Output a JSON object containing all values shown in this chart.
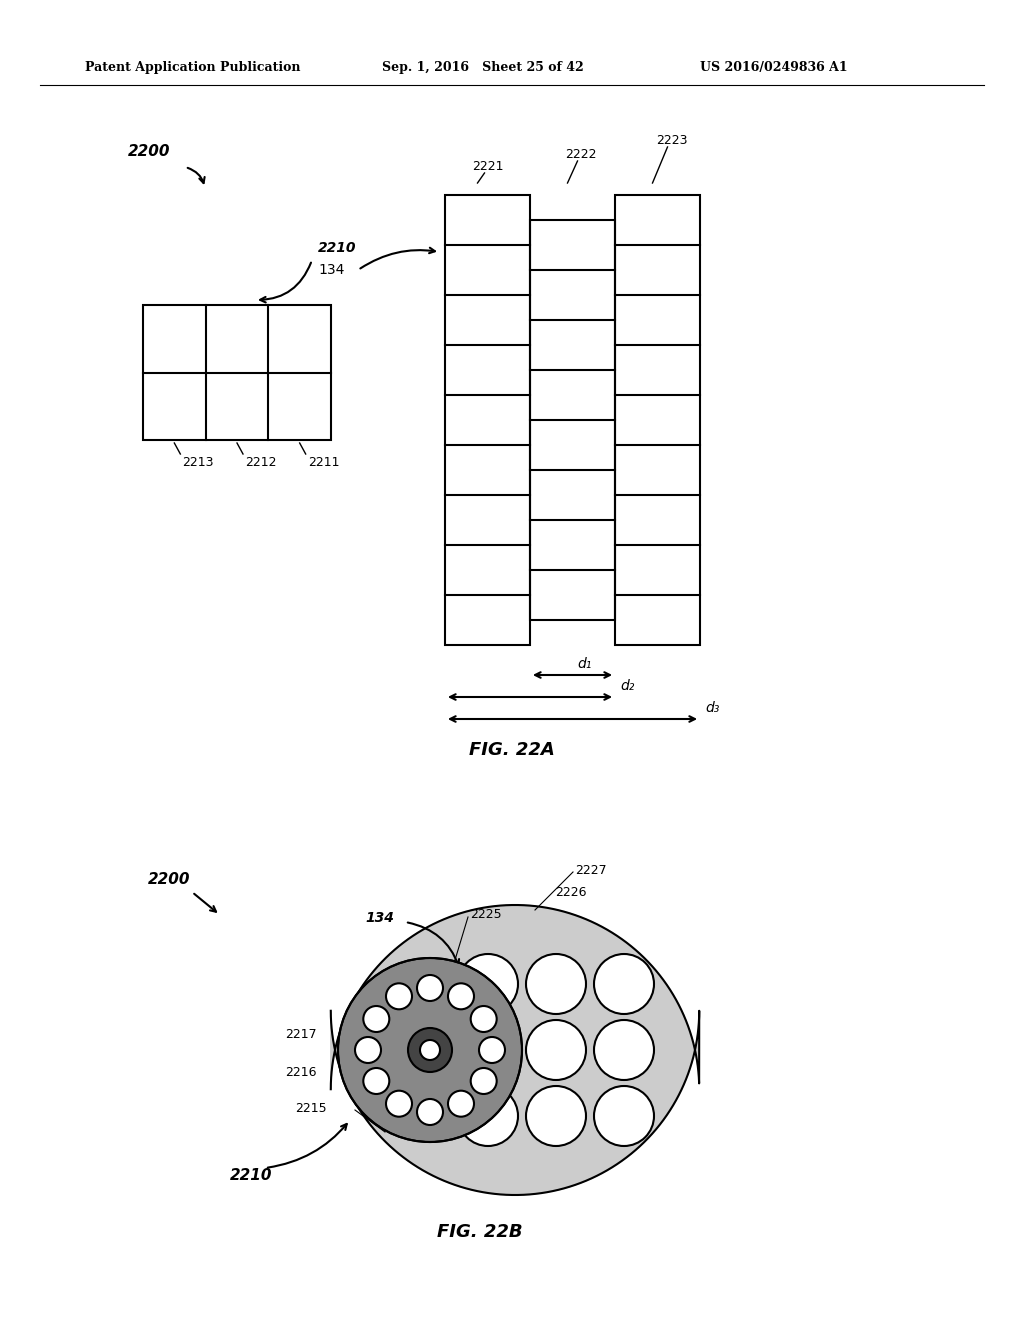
{
  "header_left": "Patent Application Publication",
  "header_mid": "Sep. 1, 2016   Sheet 25 of 42",
  "header_right": "US 2016/0249836 A1",
  "fig_a_label": "FIG. 22A",
  "fig_b_label": "FIG. 22B",
  "bg_color": "#ffffff",
  "line_color": "#000000",
  "label_2200_a": "2200",
  "label_2210_a": "2210",
  "label_134_a": "134",
  "label_2211": "2211",
  "label_2212": "2212",
  "label_2213": "2213",
  "label_2221": "2221",
  "label_2222": "2222",
  "label_2223": "2223",
  "label_d1": "d₁",
  "label_d2": "d₂",
  "label_d3": "d₃",
  "label_2200_b": "2200",
  "label_2210_b": "2210",
  "label_134_b": "134",
  "label_2215": "2215",
  "label_2216": "2216",
  "label_2217": "2217",
  "label_2225": "2225",
  "label_2226": "2226",
  "label_2227": "2227"
}
